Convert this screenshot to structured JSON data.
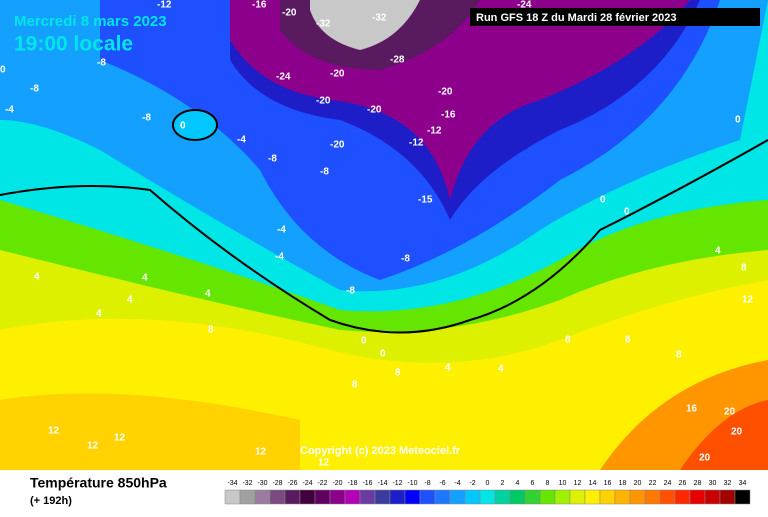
{
  "header": {
    "date": "Mercredi 8 mars 2023",
    "time": "19:00 locale",
    "run": "Run GFS 18 Z du Mardi 28 février 2023",
    "copyright": "Copyright (c) 2023 Meteociel.fr"
  },
  "footer": {
    "title": "Température 850hPa",
    "subtitle": "(+ 192h)"
  },
  "legend": {
    "ticks": [
      -34,
      -32,
      -30,
      -28,
      -26,
      -24,
      -22,
      -20,
      -18,
      -16,
      -14,
      -12,
      -10,
      -8,
      -6,
      -4,
      -2,
      0,
      2,
      4,
      6,
      8,
      10,
      12,
      14,
      16,
      18,
      20,
      22,
      24,
      26,
      28,
      30,
      32,
      34
    ],
    "colors": [
      "#c8c8c8",
      "#a0a0a0",
      "#9a7ca0",
      "#7a4a80",
      "#5a1a60",
      "#40003c",
      "#600060",
      "#8c008c",
      "#b400b4",
      "#6a3ca0",
      "#3c3ca0",
      "#1e1ec8",
      "#0000ff",
      "#1e50ff",
      "#1e78ff",
      "#14a0ff",
      "#00c8ff",
      "#00e6e6",
      "#00d2a0",
      "#00c864",
      "#32d232",
      "#64e600",
      "#a0f000",
      "#dcf000",
      "#fff000",
      "#ffd200",
      "#ffb400",
      "#ff9600",
      "#ff7800",
      "#ff5000",
      "#ff2800",
      "#e60000",
      "#c80000",
      "#a00000",
      "#000000"
    ]
  },
  "contour_labels": [
    "-16",
    "-20",
    "-32",
    "-32",
    "-24",
    "-12",
    "-8",
    "-8",
    "-4",
    "-8",
    "0",
    "-24",
    "-20",
    "-28",
    "-20",
    "-20",
    "-12",
    "-16",
    "-20",
    "-12",
    "-8",
    "-20",
    "-8",
    "-15",
    "-8",
    "0",
    "-4",
    "-4",
    "-4",
    "-8",
    "4",
    "4",
    "4",
    "4",
    "4",
    "8",
    "0",
    "0",
    "4",
    "8",
    "8",
    "8",
    "12",
    "12",
    "12",
    "12",
    "12",
    "4",
    "8",
    "8",
    "0",
    "4",
    "8",
    "12",
    "16",
    "20",
    "20",
    "20",
    "0",
    "0"
  ]
}
